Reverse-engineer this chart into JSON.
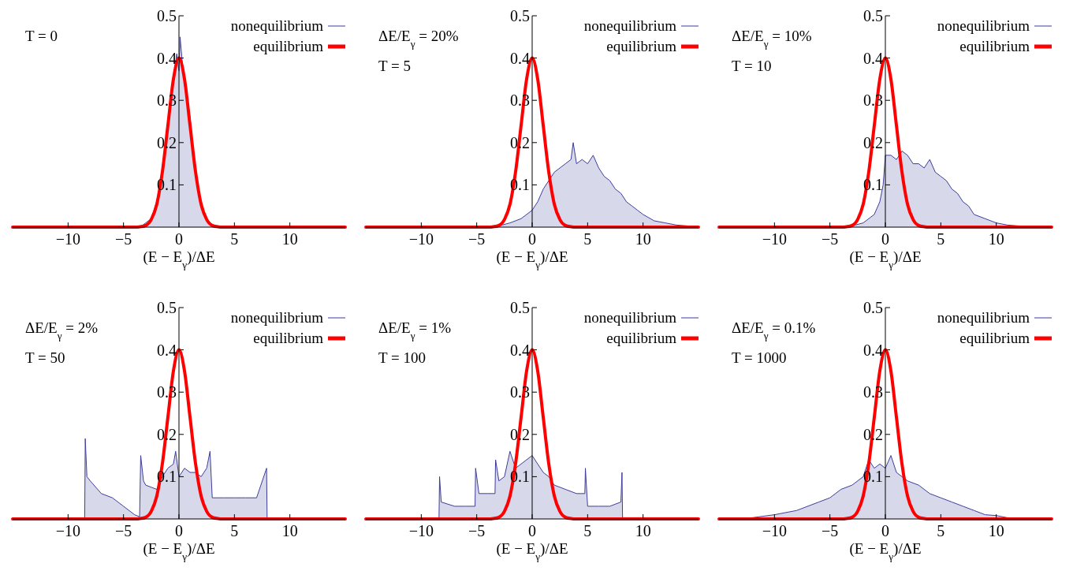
{
  "chart_data": [
    {
      "type": "area",
      "xlabel": "(E − E$_{γ}$)/ΔE",
      "annotations": [
        "T = 0"
      ],
      "xlim": [
        -15,
        15
      ],
      "xticks": [
        -10,
        -5,
        0,
        5,
        10
      ],
      "ylim": [
        0,
        0.5
      ],
      "yticks": [
        0.1,
        0.2,
        0.3,
        0.4,
        0.5
      ],
      "legend": "top right",
      "grid": false,
      "series": [
        {
          "name": "nonequilibrium",
          "color": "#3d3d9a",
          "x": [
            -15,
            -3.5,
            -3,
            -2.5,
            -2,
            -1.5,
            -1,
            -0.5,
            -0.2,
            0,
            0.1,
            0.3,
            0.5,
            1,
            1.5,
            2,
            2.5,
            3,
            3.5,
            15
          ],
          "values": [
            0,
            0,
            0.01,
            0.02,
            0.06,
            0.13,
            0.24,
            0.35,
            0.41,
            0.37,
            0.45,
            0.39,
            0.35,
            0.26,
            0.13,
            0.05,
            0.02,
            0.005,
            0,
            0
          ]
        },
        {
          "name": "equilibrium",
          "type": "line",
          "color": "#ff0000",
          "x": [
            -15,
            -4,
            -3.5,
            -3,
            -2.5,
            -2,
            -1.5,
            -1,
            -0.5,
            0,
            0.5,
            1,
            1.5,
            2,
            2.5,
            3,
            3.5,
            4,
            15
          ],
          "values": [
            0,
            0,
            0.001,
            0.004,
            0.018,
            0.054,
            0.13,
            0.24,
            0.35,
            0.4,
            0.35,
            0.24,
            0.13,
            0.054,
            0.018,
            0.004,
            0.001,
            0,
            0
          ]
        }
      ]
    },
    {
      "type": "area",
      "xlabel": "(E − E$_{γ}$)/ΔE",
      "annotations": [
        "ΔE/E$_{γ}$ = 20%",
        "T = 5"
      ],
      "xlim": [
        -15,
        15
      ],
      "xticks": [
        -10,
        -5,
        0,
        5,
        10
      ],
      "ylim": [
        0,
        0.5
      ],
      "yticks": [
        0.1,
        0.2,
        0.3,
        0.4,
        0.5
      ],
      "legend": "top right",
      "grid": false,
      "series": [
        {
          "name": "nonequilibrium",
          "color": "#3d3d9a",
          "x": [
            -15,
            -3,
            -2,
            -1,
            0,
            0.5,
            1,
            1.5,
            2,
            2.5,
            3,
            3.5,
            3.7,
            4,
            4.5,
            5,
            5.5,
            6,
            6.5,
            7,
            7.5,
            8,
            8.5,
            9,
            9.5,
            10,
            11,
            12,
            13,
            14,
            15
          ],
          "values": [
            0,
            0.003,
            0.01,
            0.02,
            0.04,
            0.06,
            0.09,
            0.11,
            0.13,
            0.14,
            0.15,
            0.16,
            0.2,
            0.15,
            0.16,
            0.15,
            0.17,
            0.14,
            0.12,
            0.11,
            0.09,
            0.08,
            0.06,
            0.05,
            0.04,
            0.03,
            0.015,
            0.01,
            0.005,
            0.003,
            0
          ]
        },
        {
          "name": "equilibrium",
          "type": "line",
          "color": "#ff0000",
          "x": [
            -15,
            -4,
            -3.5,
            -3,
            -2.5,
            -2,
            -1.5,
            -1,
            -0.5,
            0,
            0.5,
            1,
            1.5,
            2,
            2.5,
            3,
            3.5,
            4,
            15
          ],
          "values": [
            0,
            0,
            0.001,
            0.004,
            0.018,
            0.054,
            0.13,
            0.24,
            0.35,
            0.4,
            0.35,
            0.24,
            0.13,
            0.054,
            0.018,
            0.004,
            0.001,
            0,
            0
          ]
        }
      ]
    },
    {
      "type": "area",
      "xlabel": "(E − E$_{γ}$)/ΔE",
      "annotations": [
        "ΔE/E$_{γ}$ = 10%",
        "T = 10"
      ],
      "xlim": [
        -15,
        15
      ],
      "xticks": [
        -10,
        -5,
        0,
        5,
        10
      ],
      "ylim": [
        0,
        0.5
      ],
      "yticks": [
        0.1,
        0.2,
        0.3,
        0.4,
        0.5
      ],
      "legend": "top right",
      "grid": false,
      "series": [
        {
          "name": "nonequilibrium",
          "color": "#3d3d9a",
          "x": [
            -15,
            -3,
            -2,
            -1,
            -0.5,
            -0.2,
            0,
            0.5,
            1,
            1.5,
            2,
            2.5,
            3,
            3.5,
            4,
            4.5,
            5,
            5.5,
            6,
            6.5,
            7,
            7.5,
            8,
            9,
            10,
            11,
            12,
            15
          ],
          "values": [
            0,
            0.003,
            0.01,
            0.03,
            0.06,
            0.1,
            0.17,
            0.17,
            0.16,
            0.18,
            0.17,
            0.15,
            0.15,
            0.14,
            0.16,
            0.13,
            0.12,
            0.11,
            0.09,
            0.08,
            0.06,
            0.05,
            0.03,
            0.02,
            0.01,
            0.005,
            0.003,
            0
          ]
        },
        {
          "name": "equilibrium",
          "type": "line",
          "color": "#ff0000",
          "x": [
            -15,
            -4,
            -3.5,
            -3,
            -2.5,
            -2,
            -1.5,
            -1,
            -0.5,
            0,
            0.5,
            1,
            1.5,
            2,
            2.5,
            3,
            3.5,
            4,
            15
          ],
          "values": [
            0,
            0,
            0.001,
            0.004,
            0.018,
            0.054,
            0.13,
            0.24,
            0.35,
            0.4,
            0.35,
            0.24,
            0.13,
            0.054,
            0.018,
            0.004,
            0.001,
            0,
            0
          ]
        }
      ]
    },
    {
      "type": "area",
      "xlabel": "(E − E$_{γ}$)/ΔE",
      "annotations": [
        "ΔE/E$_{γ}$ = 2%",
        "T = 50"
      ],
      "xlim": [
        -15,
        15
      ],
      "xticks": [
        -10,
        -5,
        0,
        5,
        10
      ],
      "ylim": [
        0,
        0.5
      ],
      "yticks": [
        0.1,
        0.2,
        0.3,
        0.4,
        0.5
      ],
      "legend": "top right",
      "grid": false,
      "series": [
        {
          "name": "nonequilibrium",
          "color": "#3d3d9a",
          "x": [
            -15,
            -8.5,
            -8.45,
            -8.3,
            -8,
            -7,
            -6,
            -5,
            -4,
            -3.55,
            -3.45,
            -3.2,
            -3,
            -2,
            -1.5,
            -1,
            -0.5,
            -0.3,
            0,
            0.5,
            1,
            1.5,
            2,
            2.5,
            2.8,
            3,
            4,
            5,
            6,
            7,
            7.9,
            7.95,
            15
          ],
          "values": [
            0,
            0,
            0.19,
            0.1,
            0.09,
            0.06,
            0.05,
            0.03,
            0.01,
            0.005,
            0.15,
            0.09,
            0.08,
            0.07,
            0.1,
            0.12,
            0.13,
            0.16,
            0.1,
            0.12,
            0.11,
            0.11,
            0.1,
            0.12,
            0.16,
            0.05,
            0.05,
            0.05,
            0.05,
            0.05,
            0.12,
            0,
            0
          ]
        },
        {
          "name": "equilibrium",
          "type": "line",
          "color": "#ff0000",
          "x": [
            -15,
            -4,
            -3.5,
            -3,
            -2.5,
            -2,
            -1.5,
            -1,
            -0.5,
            0,
            0.5,
            1,
            1.5,
            2,
            2.5,
            3,
            3.5,
            4,
            15
          ],
          "values": [
            0,
            0,
            0.001,
            0.004,
            0.018,
            0.054,
            0.13,
            0.24,
            0.35,
            0.4,
            0.35,
            0.24,
            0.13,
            0.054,
            0.018,
            0.004,
            0.001,
            0,
            0
          ]
        }
      ]
    },
    {
      "type": "area",
      "xlabel": "(E − E$_{γ}$)/ΔE",
      "annotations": [
        "ΔE/E$_{γ}$ = 1%",
        "T = 100"
      ],
      "xlim": [
        -15,
        15
      ],
      "xticks": [
        -10,
        -5,
        0,
        5,
        10
      ],
      "ylim": [
        0,
        0.5
      ],
      "yticks": [
        0.1,
        0.2,
        0.3,
        0.4,
        0.5
      ],
      "legend": "top right",
      "grid": false,
      "series": [
        {
          "name": "nonequilibrium",
          "color": "#3d3d9a",
          "x": [
            -15,
            -8.4,
            -8.35,
            -8.2,
            -7,
            -6,
            -5.15,
            -5.1,
            -4.8,
            -4,
            -3.35,
            -3.3,
            -3,
            -2.5,
            -2,
            -1.5,
            -1,
            -0.5,
            0,
            0.5,
            1,
            1.5,
            2,
            3,
            4,
            4.75,
            4.8,
            5,
            6,
            7,
            8,
            8.1,
            8.15,
            15
          ],
          "values": [
            0,
            0,
            0.1,
            0.04,
            0.03,
            0.03,
            0.03,
            0.12,
            0.06,
            0.06,
            0.06,
            0.14,
            0.09,
            0.1,
            0.16,
            0.12,
            0.13,
            0.14,
            0.15,
            0.13,
            0.11,
            0.1,
            0.08,
            0.07,
            0.06,
            0.06,
            0.12,
            0.03,
            0.03,
            0.03,
            0.04,
            0.11,
            0.003,
            0.003
          ]
        },
        {
          "name": "equilibrium",
          "type": "line",
          "color": "#ff0000",
          "x": [
            -15,
            -4,
            -3.5,
            -3,
            -2.5,
            -2,
            -1.5,
            -1,
            -0.5,
            0,
            0.5,
            1,
            1.5,
            2,
            2.5,
            3,
            3.5,
            4,
            15
          ],
          "values": [
            0,
            0,
            0.001,
            0.004,
            0.018,
            0.054,
            0.13,
            0.24,
            0.35,
            0.4,
            0.35,
            0.24,
            0.13,
            0.054,
            0.018,
            0.004,
            0.001,
            0,
            0
          ]
        }
      ]
    },
    {
      "type": "area",
      "xlabel": "(E − E$_{γ}$)/ΔE",
      "annotations": [
        "ΔE/E$_{γ}$ = 0.1%",
        "T = 1000"
      ],
      "xlim": [
        -15,
        15
      ],
      "xticks": [
        -10,
        -5,
        0,
        5,
        10
      ],
      "ylim": [
        0,
        0.5
      ],
      "yticks": [
        0.1,
        0.2,
        0.3,
        0.4,
        0.5
      ],
      "legend": "top right",
      "grid": false,
      "series": [
        {
          "name": "nonequilibrium",
          "color": "#3d3d9a",
          "x": [
            -15,
            -12,
            -10,
            -8,
            -6,
            -5,
            -4,
            -3,
            -2,
            -1.5,
            -1,
            -0.5,
            0,
            0.5,
            1,
            2,
            3,
            4,
            5,
            6,
            7,
            8,
            9,
            10,
            11,
            15
          ],
          "values": [
            0,
            0.003,
            0.01,
            0.02,
            0.04,
            0.05,
            0.07,
            0.08,
            0.1,
            0.14,
            0.12,
            0.13,
            0.12,
            0.15,
            0.11,
            0.09,
            0.08,
            0.06,
            0.05,
            0.04,
            0.03,
            0.02,
            0.01,
            0.008,
            0.003,
            0
          ]
        },
        {
          "name": "equilibrium",
          "type": "line",
          "color": "#ff0000",
          "x": [
            -15,
            -4,
            -3.5,
            -3,
            -2.5,
            -2,
            -1.5,
            -1,
            -0.5,
            0,
            0.5,
            1,
            1.5,
            2,
            2.5,
            3,
            3.5,
            4,
            15
          ],
          "values": [
            0,
            0,
            0.001,
            0.004,
            0.018,
            0.054,
            0.13,
            0.24,
            0.35,
            0.4,
            0.35,
            0.24,
            0.13,
            0.054,
            0.018,
            0.004,
            0.001,
            0,
            0
          ]
        }
      ]
    }
  ]
}
